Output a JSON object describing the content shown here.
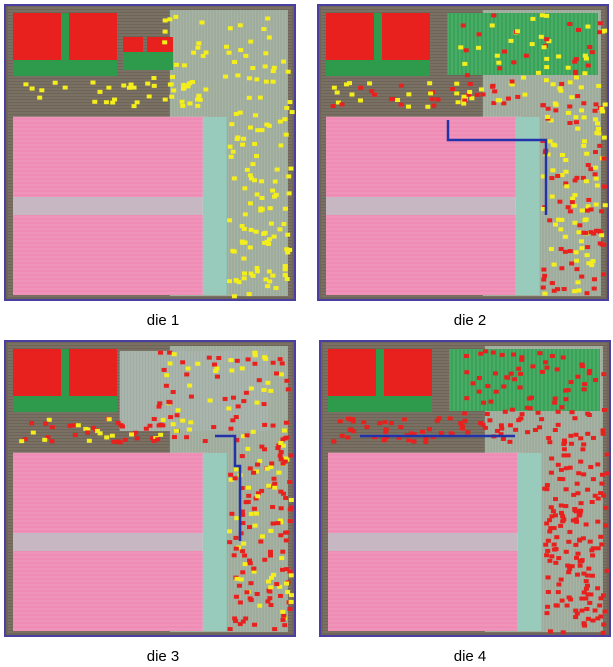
{
  "panels": [
    {
      "caption": "die 1"
    },
    {
      "caption": "die 2"
    },
    {
      "caption": "die 3"
    },
    {
      "caption": "die 4"
    }
  ]
}
